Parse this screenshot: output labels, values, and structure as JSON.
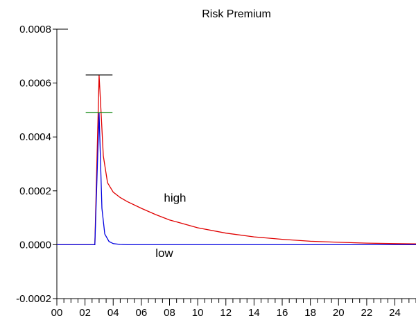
{
  "chart_data": {
    "type": "line",
    "title": "Risk Premium",
    "xlabel": "",
    "ylabel": "",
    "xlim": [
      0,
      25.5
    ],
    "ylim": [
      -0.0002,
      0.0008
    ],
    "x_ticks": [
      "00",
      "02",
      "04",
      "06",
      "08",
      "10",
      "12",
      "14",
      "16",
      "18",
      "20",
      "22",
      "24"
    ],
    "y_ticks": [
      "-0.0002",
      "0.0000",
      "0.0002",
      "0.0004",
      "0.0006",
      "0.0008"
    ],
    "grid": false,
    "legend": "none",
    "series": [
      {
        "name": "high",
        "color": "#e00000",
        "x": [
          0,
          2.7,
          3.0,
          3.15,
          3.3,
          3.6,
          4.0,
          4.5,
          5,
          6,
          7,
          8,
          10,
          12,
          14,
          16,
          18,
          20,
          22,
          24,
          25.5
        ],
        "y": [
          0,
          0,
          0.00063,
          0.00048,
          0.00033,
          0.00023,
          0.000195,
          0.000175,
          0.00016,
          0.000135,
          0.000112,
          9.2e-05,
          6.3e-05,
          4.3e-05,
          2.9e-05,
          2e-05,
          1.3e-05,
          9e-06,
          6e-06,
          4e-06,
          3e-06
        ]
      },
      {
        "name": "low",
        "color": "#0000e0",
        "x": [
          0,
          2.7,
          3.0,
          3.2,
          3.4,
          3.7,
          4.0,
          4.5,
          5,
          6,
          8,
          25.5
        ],
        "y": [
          0,
          0,
          0.00049,
          0.000135,
          4e-05,
          1.2e-05,
          4e-06,
          1e-06,
          0,
          0,
          0,
          0
        ]
      }
    ],
    "annotations": [
      {
        "text": "high",
        "x": 7.6,
        "y": 0.00016
      },
      {
        "text": "low",
        "x": 7.0,
        "y": -4.5e-05
      }
    ],
    "error_caps": [
      {
        "color": "#000000",
        "x": 3.0,
        "y": 0.00063,
        "halfwidth": 0.95
      },
      {
        "color": "#008000",
        "x": 3.0,
        "y": 0.00049,
        "halfwidth": 0.95
      }
    ]
  }
}
